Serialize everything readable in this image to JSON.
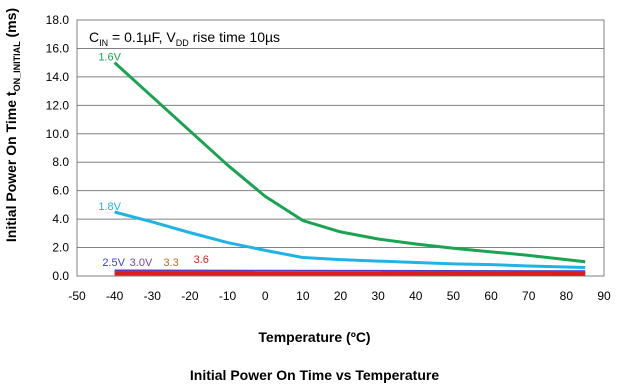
{
  "chart_data": {
    "type": "line",
    "annotation": {
      "c": "C",
      "c_sub": "IN",
      "c_rest": " = 0.1µF, V",
      "v_sub": "DD",
      "v_rest": " rise time 10µs"
    },
    "xlabel": "Temperature (ºC)",
    "ylabel": {
      "main": "Initial Power On Time t",
      "sub": "ON_INITIAL",
      "unit": " (ms)"
    },
    "caption": "Initial Power On Time vs Temperature",
    "xlim": [
      -50,
      90
    ],
    "ylim": [
      0,
      18
    ],
    "x_ticks": [
      "-50",
      "-40",
      "-30",
      "-20",
      "-10",
      "0",
      "10",
      "20",
      "30",
      "40",
      "50",
      "60",
      "70",
      "80",
      "90"
    ],
    "y_ticks": [
      "0.0",
      "2.0",
      "4.0",
      "6.0",
      "8.0",
      "10.0",
      "12.0",
      "14.0",
      "16.0",
      "18.0"
    ],
    "grid": "horizontal",
    "series": [
      {
        "name": "1.6V",
        "color": "#1aa350",
        "x": [
          -40,
          -30,
          -20,
          -10,
          0,
          10,
          20,
          30,
          40,
          50,
          60,
          70,
          85
        ],
        "y": [
          15.0,
          12.6,
          10.2,
          7.8,
          5.6,
          3.9,
          3.1,
          2.6,
          2.25,
          1.95,
          1.7,
          1.45,
          1.0
        ]
      },
      {
        "name": "1.8V",
        "color": "#1fb3e6",
        "x": [
          -40,
          -30,
          -20,
          -10,
          0,
          10,
          20,
          30,
          40,
          50,
          60,
          70,
          85
        ],
        "y": [
          4.5,
          3.8,
          3.05,
          2.35,
          1.8,
          1.3,
          1.15,
          1.05,
          0.95,
          0.85,
          0.8,
          0.7,
          0.6
        ]
      },
      {
        "name": "2.5V",
        "color": "#3b3bd6",
        "x": [
          -40,
          85
        ],
        "y": [
          0.35,
          0.3
        ]
      },
      {
        "name": "3.0V",
        "color": "#7b3fa0",
        "x": [
          -40,
          85
        ],
        "y": [
          0.28,
          0.25
        ]
      },
      {
        "name": "3.3",
        "color": "#c06a20",
        "x": [
          -40,
          85
        ],
        "y": [
          0.22,
          0.2
        ]
      },
      {
        "name": "3.6",
        "color": "#dd1c1c",
        "x": [
          -40,
          85
        ],
        "y": [
          0.18,
          0.15
        ]
      }
    ]
  }
}
